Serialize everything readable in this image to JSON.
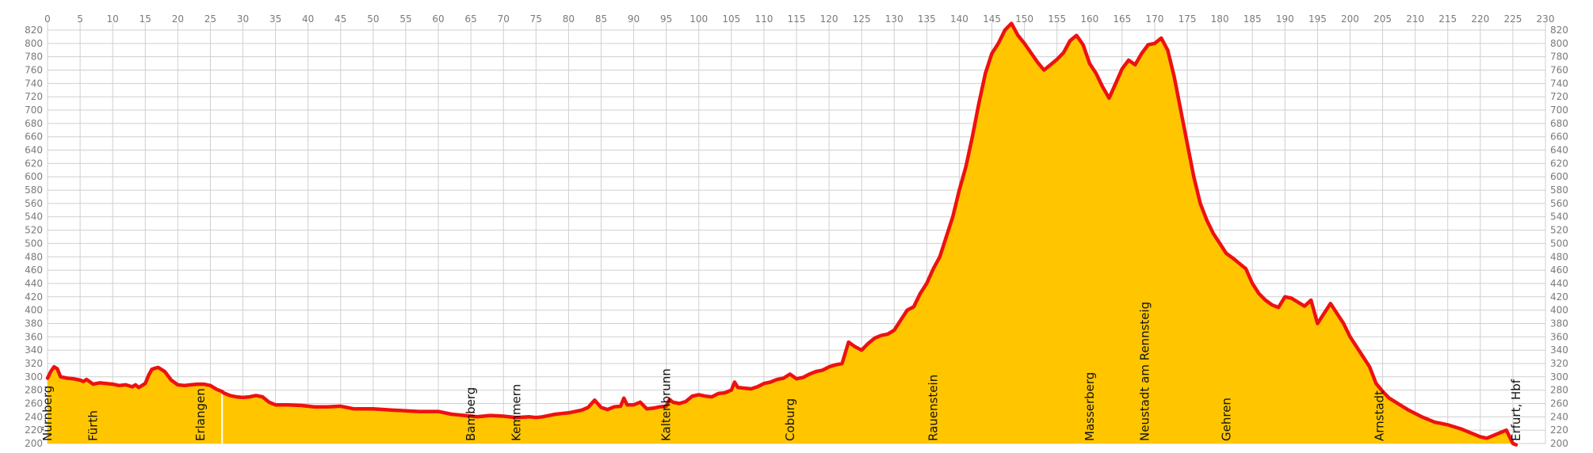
{
  "chart_data": {
    "type": "area",
    "title": "",
    "xlabel": "",
    "ylabel": "",
    "xlim": [
      0,
      230
    ],
    "ylim": [
      200,
      820
    ],
    "x_ticks": [
      0,
      5,
      10,
      15,
      20,
      25,
      30,
      35,
      40,
      45,
      50,
      55,
      60,
      65,
      70,
      75,
      80,
      85,
      90,
      95,
      100,
      105,
      110,
      115,
      120,
      125,
      130,
      135,
      140,
      145,
      150,
      155,
      160,
      165,
      170,
      175,
      180,
      185,
      190,
      195,
      200,
      205,
      210,
      215,
      220,
      225,
      230
    ],
    "y_ticks": [
      200,
      220,
      240,
      260,
      280,
      300,
      320,
      340,
      360,
      380,
      400,
      420,
      440,
      460,
      480,
      500,
      520,
      540,
      560,
      580,
      600,
      620,
      640,
      660,
      680,
      700,
      720,
      740,
      760,
      780,
      800,
      820
    ],
    "grid": true,
    "colors": {
      "fill": "#ffc600",
      "line": "#ee1111",
      "grid": "#cfcfcf",
      "divider": "#ffffff"
    },
    "places": [
      {
        "name": "Nürnberg",
        "km": 0
      },
      {
        "name": "Fürth",
        "km": 7
      },
      {
        "name": "Erlangen",
        "km": 23.5
      },
      {
        "name": "Bamberg",
        "km": 65
      },
      {
        "name": "Kemmern",
        "km": 72
      },
      {
        "name": "Kaltenbrunn",
        "km": 95
      },
      {
        "name": "Coburg",
        "km": 114
      },
      {
        "name": "Rauenstein",
        "km": 136
      },
      {
        "name": "Masserberg",
        "km": 160
      },
      {
        "name": "Neustadt am Rennsteig",
        "km": 168.5
      },
      {
        "name": "Gehren",
        "km": 181
      },
      {
        "name": "Arnstadt",
        "km": 204.5
      },
      {
        "name": "Erfurt, Hbf",
        "km": 225.5
      }
    ],
    "divider_km": 26.8,
    "series": [
      {
        "x": [
          0,
          0.5,
          1,
          1.5,
          2,
          3,
          4,
          5,
          5.5,
          6,
          7,
          8,
          9,
          10,
          11,
          12,
          13,
          13.5,
          14,
          15,
          15.5,
          16,
          16.5,
          17,
          18,
          19,
          20,
          21,
          22,
          23,
          24,
          25,
          26,
          26.8,
          27,
          28,
          29,
          30,
          31,
          32,
          33,
          34,
          35,
          37,
          39,
          41,
          43,
          45,
          47,
          50,
          53,
          55,
          57,
          60,
          62,
          64,
          66,
          68,
          70,
          72,
          74,
          75,
          76,
          78,
          80,
          82,
          83,
          84,
          85,
          86,
          87,
          88,
          88.5,
          89,
          90,
          91,
          92,
          93,
          94,
          95,
          95.5,
          96,
          97,
          98,
          99,
          100,
          101,
          102,
          103,
          104,
          105,
          105.5,
          106,
          107,
          108,
          109,
          110,
          111,
          112,
          113,
          114,
          115,
          116,
          117,
          118,
          119,
          120,
          121,
          122,
          123,
          124,
          125,
          126,
          127,
          128,
          129,
          130,
          131,
          132,
          133,
          134,
          135,
          136,
          137,
          138,
          139,
          140,
          141,
          142,
          143,
          144,
          145,
          146,
          147,
          148,
          149,
          150,
          151,
          152,
          153,
          154,
          155,
          156,
          157,
          158,
          159,
          160,
          161,
          162,
          163,
          164,
          165,
          166,
          167,
          168,
          169,
          170,
          171,
          172,
          173,
          174,
          175,
          176,
          177,
          178,
          179,
          180,
          181,
          182,
          183,
          184,
          185,
          186,
          187,
          188,
          189,
          190,
          191,
          192,
          193,
          194,
          195,
          196,
          197,
          198,
          199,
          200,
          201,
          202,
          203,
          204,
          205,
          206,
          207,
          208,
          209,
          210,
          211,
          212,
          213,
          214,
          215,
          216,
          217,
          218,
          219,
          220,
          221,
          222,
          223,
          224,
          225,
          225.5
        ],
        "values": [
          298,
          308,
          315,
          312,
          300,
          298,
          297,
          295,
          293,
          296,
          289,
          291,
          290,
          289,
          287,
          288,
          285,
          288,
          284,
          290,
          302,
          311,
          313,
          314,
          308,
          295,
          288,
          287,
          288,
          289,
          289,
          287,
          281,
          278,
          276,
          272,
          270,
          269,
          270,
          272,
          270,
          262,
          258,
          258,
          257,
          255,
          255,
          256,
          252,
          252,
          250,
          249,
          248,
          248,
          244,
          242,
          240,
          242,
          241,
          239,
          240,
          239,
          240,
          244,
          246,
          250,
          254,
          265,
          254,
          251,
          255,
          256,
          268,
          258,
          258,
          262,
          252,
          253,
          255,
          256,
          266,
          262,
          260,
          263,
          271,
          273,
          271,
          270,
          275,
          276,
          280,
          292,
          284,
          283,
          282,
          285,
          290,
          292,
          296,
          298,
          304,
          297,
          299,
          304,
          308,
          310,
          315,
          318,
          320,
          352,
          345,
          340,
          350,
          358,
          362,
          364,
          370,
          385,
          400,
          405,
          425,
          440,
          462,
          480,
          510,
          540,
          580,
          615,
          660,
          710,
          755,
          785,
          800,
          820,
          830,
          812,
          800,
          786,
          772,
          760,
          768,
          776,
          786,
          804,
          812,
          798,
          770,
          755,
          735,
          718,
          740,
          762,
          775,
          768,
          785,
          798,
          800,
          808,
          790,
          750,
          700,
          650,
          600,
          560,
          535,
          515,
          500,
          485,
          478,
          470,
          462,
          440,
          425,
          415,
          408,
          404,
          420,
          418,
          412,
          406,
          415,
          380,
          395,
          410,
          395,
          380,
          360,
          345,
          330,
          315,
          290,
          278,
          268,
          262,
          256,
          250,
          245,
          240,
          236,
          232,
          230,
          228,
          225,
          222,
          218,
          214,
          210,
          208,
          212,
          216,
          220,
          200,
          198
        ]
      }
    ]
  }
}
